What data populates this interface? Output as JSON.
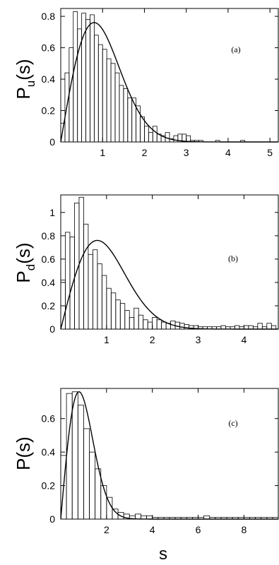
{
  "xlabel": "s",
  "chart_data": [
    {
      "type": "bar",
      "panel": "(a)",
      "ylabel_main": "P",
      "ylabel_sub": "u",
      "ylabel_suffix": "(s)",
      "xlim": [
        0,
        5.2
      ],
      "ylim": [
        0,
        0.85
      ],
      "xticks": [
        1,
        2,
        3,
        4,
        5
      ],
      "yticks": [
        0,
        0.2,
        0.4,
        0.6,
        0.8
      ],
      "ytick_labels": [
        "0",
        "0.2",
        "0.4",
        "0.6",
        "0.8"
      ],
      "bin_width": 0.1,
      "histogram": [
        0.12,
        0.44,
        0.6,
        0.83,
        0.72,
        0.82,
        0.78,
        0.81,
        0.68,
        0.62,
        0.59,
        0.53,
        0.5,
        0.44,
        0.36,
        0.34,
        0.28,
        0.28,
        0.23,
        0.16,
        0.1,
        0.06,
        0.1,
        0.05,
        0.04,
        0.06,
        0.02,
        0.04,
        0.05,
        0.05,
        0.04,
        0.01,
        0.01,
        0.01,
        0,
        0,
        0,
        0.01,
        0,
        0,
        0,
        0,
        0,
        0.01,
        0,
        0,
        0,
        0,
        0,
        0,
        0,
        0
      ],
      "curve": "wigner"
    },
    {
      "type": "bar",
      "panel": "(b)",
      "ylabel_main": "P",
      "ylabel_sub": "d",
      "ylabel_suffix": "(s)",
      "xlim": [
        0,
        4.75
      ],
      "ylim": [
        0,
        1.15
      ],
      "xticks": [
        1,
        2,
        3,
        4
      ],
      "yticks": [
        0,
        0.2,
        0.4,
        0.6,
        0.8,
        1
      ],
      "ytick_labels": [
        "0",
        "0.2",
        "0.4",
        "0.6",
        "0.8",
        "1"
      ],
      "bin_width": 0.1,
      "histogram": [
        0.42,
        0.83,
        0.79,
        1.08,
        1.13,
        0.9,
        0.64,
        0.68,
        0.56,
        0.46,
        0.35,
        0.31,
        0.25,
        0.22,
        0.16,
        0.1,
        0.18,
        0.12,
        0.08,
        0.06,
        0.1,
        0.08,
        0.06,
        0.05,
        0.07,
        0.06,
        0.05,
        0.04,
        0.03,
        0.03,
        0.02,
        0.02,
        0.02,
        0.02,
        0.02,
        0.03,
        0.02,
        0.02,
        0.03,
        0.02,
        0.03,
        0.03,
        0.02,
        0.05,
        0.02,
        0.05,
        0.03
      ],
      "curve": "wigner"
    },
    {
      "type": "bar",
      "panel": "(c)",
      "ylabel_main": "P",
      "ylabel_sub": "",
      "ylabel_suffix": "(s)",
      "xlim": [
        0,
        9.5
      ],
      "ylim": [
        0,
        0.78
      ],
      "xticks": [
        2,
        4,
        6,
        8
      ],
      "yticks": [
        0,
        0.2,
        0.4,
        0.6
      ],
      "ytick_labels": [
        "0",
        "0.2",
        "0.4",
        "0.6"
      ],
      "bin_width": 0.25,
      "histogram": [
        0.38,
        0.75,
        0.76,
        0.68,
        0.54,
        0.4,
        0.3,
        0.2,
        0.13,
        0.06,
        0.04,
        0.03,
        0.02,
        0.03,
        0.02,
        0.02,
        0.01,
        0.01,
        0.01,
        0.01,
        0.01,
        0.01,
        0.01,
        0.01,
        0.01,
        0.02,
        0.01,
        0.01,
        0.01,
        0.01,
        0.01,
        0.01,
        0.01,
        0.01,
        0.01,
        0.01,
        0.01,
        0.01
      ],
      "curve": "wigner"
    }
  ]
}
